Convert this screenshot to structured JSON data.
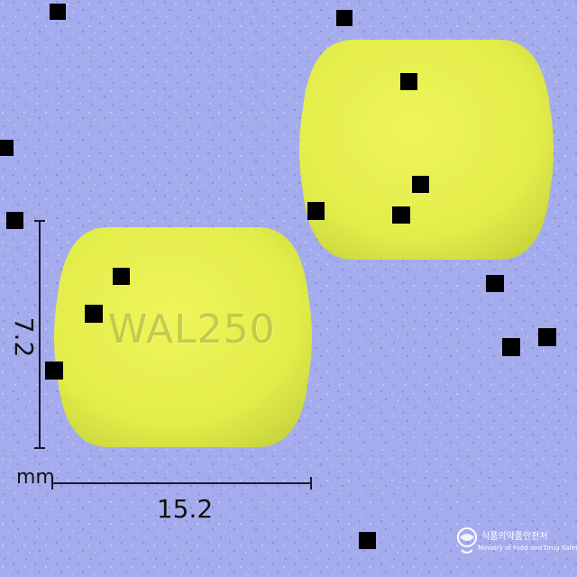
{
  "pill": {
    "imprint": "WAL250",
    "color": "#e6f04e"
  },
  "dimensions": {
    "width": "15.2",
    "height": "7.2",
    "unit": "mm"
  },
  "agency": {
    "name_ko": "식품의약품안전처",
    "name_en": "Ministry of Food and Drug Safety"
  },
  "colors": {
    "background": "#a4acee",
    "pill_yellow": "#e6f04e",
    "pill_shadow": "#c9d63c",
    "line": "#1a1a2a"
  }
}
